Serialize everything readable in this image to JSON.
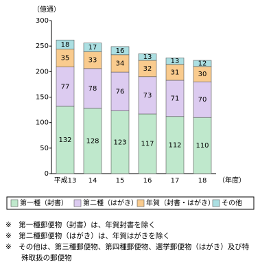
{
  "chart_data": {
    "type": "stacked-bar",
    "y_unit": "（億通）",
    "x_unit": "（年度）",
    "categories": [
      "平成13",
      "14",
      "15",
      "16",
      "17",
      "18"
    ],
    "series": [
      {
        "name": "第一種（封書）",
        "color": "#bfe8cc",
        "values": [
          132,
          128,
          123,
          117,
          112,
          110
        ]
      },
      {
        "name": "第二種（はがき）",
        "color": "#dccbf0",
        "values": [
          77,
          78,
          76,
          73,
          71,
          70
        ]
      },
      {
        "name": "年賀（封書・はがき）",
        "color": "#f9cb8e",
        "values": [
          35,
          33,
          34,
          32,
          31,
          30
        ]
      },
      {
        "name": "その他",
        "color": "#abdfe2",
        "values": [
          18,
          17,
          16,
          13,
          13,
          12
        ]
      }
    ],
    "ylim": [
      0,
      300
    ],
    "yticks": [
      0,
      50,
      100,
      150,
      200,
      250,
      300
    ],
    "grid": false,
    "legend": "bottom"
  },
  "notes": [
    "※　第一種郵便物（封書）は、年賀封書を除く",
    "※　第二種郵便物（はがき）は、年賀はがきを除く",
    "※　その他は、第三種郵便物、第四種郵便物、選挙郵便物（はがき）及び特殊取扱の郵便物"
  ]
}
